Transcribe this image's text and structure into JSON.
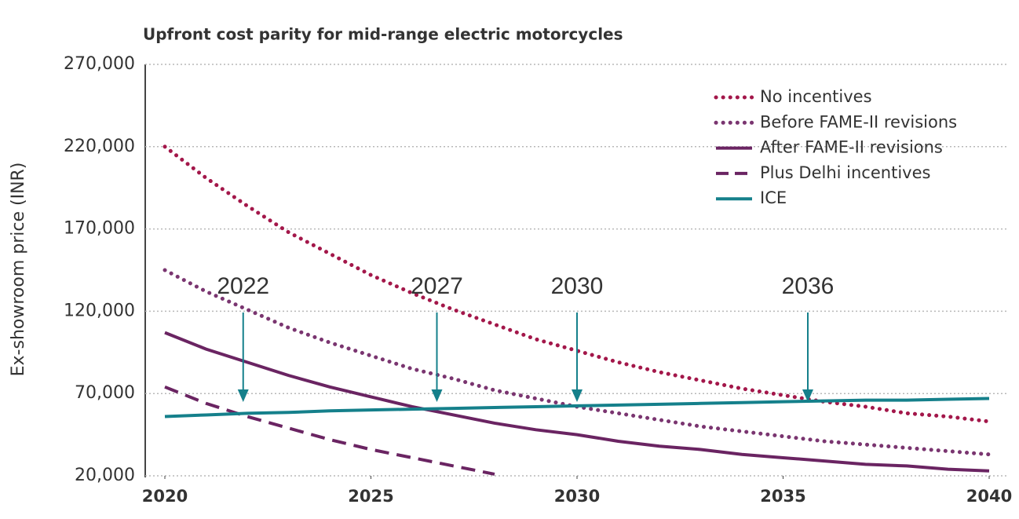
{
  "chart_data": {
    "type": "line",
    "title": "Upfront cost parity for mid-range electric motorcycles",
    "y_label": "Ex-showroom price (INR)",
    "x": [
      2020,
      2021,
      2022,
      2023,
      2024,
      2025,
      2026,
      2027,
      2028,
      2029,
      2030,
      2031,
      2032,
      2033,
      2034,
      2035,
      2036,
      2037,
      2038,
      2039,
      2040
    ],
    "xlim": [
      2020,
      2040
    ],
    "xticks": [
      2020,
      2025,
      2030,
      2035,
      2040
    ],
    "ylim": [
      20000,
      270000
    ],
    "yticks": [
      {
        "value": 20000,
        "label": "20,000"
      },
      {
        "value": 70000,
        "label": "70,000"
      },
      {
        "value": 120000,
        "label": "120,000"
      },
      {
        "value": 170000,
        "label": "170,000"
      },
      {
        "value": 220000,
        "label": "220,000"
      },
      {
        "value": 270000,
        "label": "270,000"
      }
    ],
    "grid": true,
    "legend": "upper right",
    "series": [
      {
        "name": "No incentives",
        "color": "#a3174a",
        "style": "dotted",
        "values": [
          220000,
          201000,
          184000,
          168000,
          155000,
          142000,
          131000,
          121000,
          112000,
          103000,
          96000,
          89000,
          83000,
          78000,
          73000,
          69000,
          65000,
          62000,
          58000,
          56000,
          53000
        ]
      },
      {
        "name": "Before FAME-II revisions",
        "color": "#7a3570",
        "style": "dotted",
        "values": [
          145000,
          132000,
          121000,
          110000,
          101000,
          93000,
          85000,
          79000,
          72000,
          67000,
          62000,
          58000,
          54000,
          50000,
          47000,
          44000,
          41000,
          39000,
          37000,
          35000,
          33000
        ]
      },
      {
        "name": "After FAME-II revisions",
        "color": "#6a2462",
        "style": "solid",
        "values": [
          107000,
          97000,
          89000,
          81000,
          74000,
          68000,
          62000,
          57000,
          52000,
          48000,
          45000,
          41000,
          38000,
          36000,
          33000,
          31000,
          29000,
          27000,
          26000,
          24000,
          23000
        ]
      },
      {
        "name": "Plus Delhi incentives",
        "color": "#6a2462",
        "style": "dashed",
        "values": [
          74000,
          64000,
          56000,
          49000,
          42000,
          36000,
          31000,
          26000,
          21000,
          null,
          null,
          null,
          null,
          null,
          null,
          null,
          null,
          null,
          null,
          null,
          null
        ]
      },
      {
        "name": "ICE",
        "color": "#15808b",
        "style": "solid",
        "values": [
          56000,
          57000,
          58000,
          58500,
          59500,
          60000,
          60500,
          61000,
          61500,
          62000,
          62500,
          63000,
          63500,
          64000,
          64500,
          65000,
          65500,
          66000,
          66000,
          66500,
          67000
        ]
      }
    ],
    "annotations": [
      {
        "label": "2022",
        "x": 2021.9
      },
      {
        "label": "2027",
        "x": 2026.6
      },
      {
        "label": "2030",
        "x": 2030
      },
      {
        "label": "2036",
        "x": 2035.6
      }
    ],
    "annotation_color": "#15808b"
  }
}
